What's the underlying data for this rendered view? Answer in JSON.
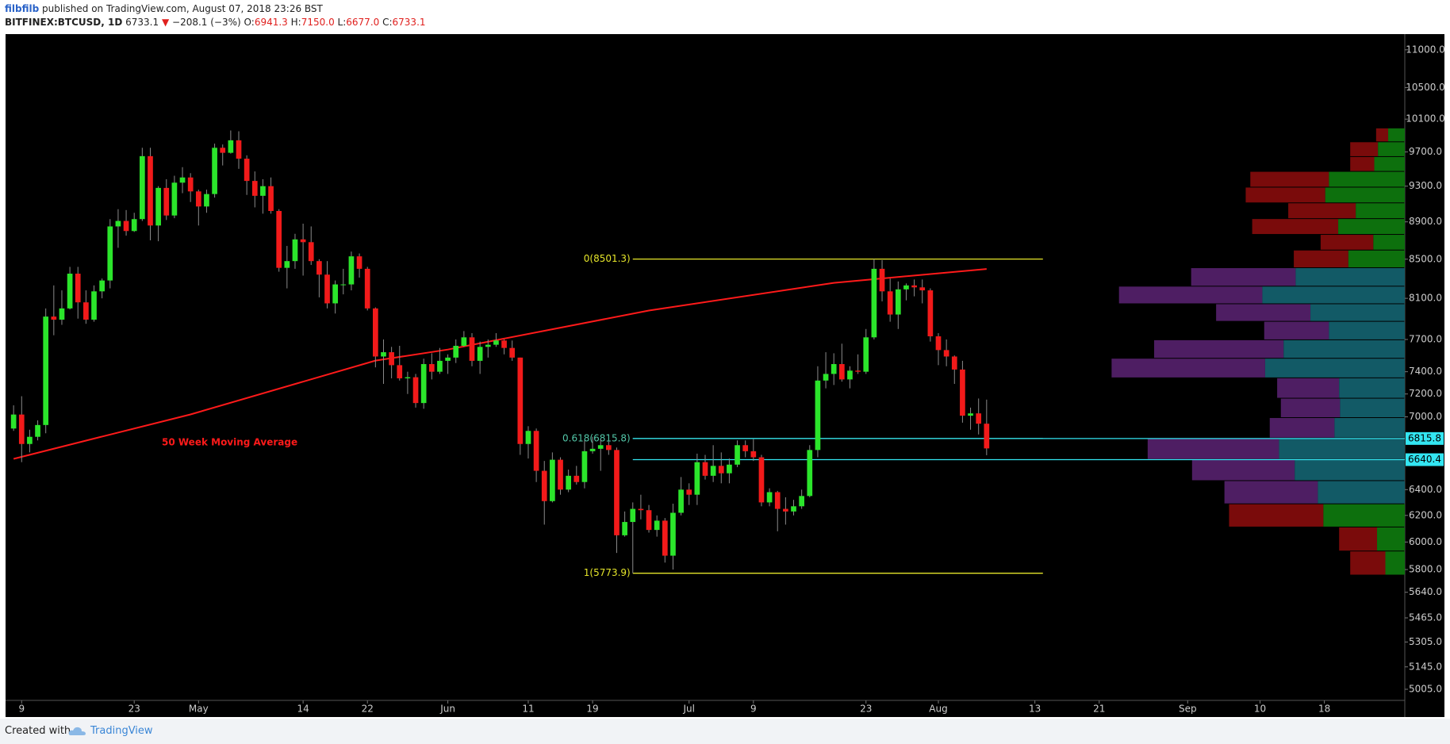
{
  "header": {
    "author": "filbfilb",
    "published": "published on TradingView.com, August 07, 2018 23:26 BST",
    "symbol": "BITFINEX:BTCUSD, 1D",
    "last": "6733.1",
    "arrow": "▼",
    "change": "−208.1 (−3%)",
    "open_label": "O:",
    "open": "6941.3",
    "high_label": "H:",
    "high": "7150.0",
    "low_label": "L:",
    "low": "6677.0",
    "close_label": "C:",
    "close": "6733.1"
  },
  "footer": {
    "created": "Created with",
    "brand": "TradingView"
  },
  "chart_data": {
    "type": "candlestick",
    "log": true,
    "up_color": "#2be52b",
    "down_color": "#f21a1a",
    "xlim": [
      "2018-04-07",
      "2018-09-28"
    ],
    "ylim": [
      4937,
      11204
    ],
    "xticks": [
      {
        "value": "2018-04-09",
        "label": "9"
      },
      {
        "value": "2018-04-23",
        "label": "23"
      },
      {
        "value": "2018-05-01",
        "label": "May"
      },
      {
        "value": "2018-05-14",
        "label": "14"
      },
      {
        "value": "2018-05-22",
        "label": "22"
      },
      {
        "value": "2018-06-01",
        "label": "Jun"
      },
      {
        "value": "2018-06-11",
        "label": "11"
      },
      {
        "value": "2018-06-19",
        "label": "19"
      },
      {
        "value": "2018-07-01",
        "label": "Jul"
      },
      {
        "value": "2018-07-09",
        "label": "9"
      },
      {
        "value": "2018-07-23",
        "label": "23"
      },
      {
        "value": "2018-08-01",
        "label": "Aug"
      },
      {
        "value": "2018-08-13",
        "label": "13"
      },
      {
        "value": "2018-08-21",
        "label": "21"
      },
      {
        "value": "2018-09-01",
        "label": "Sep"
      },
      {
        "value": "2018-09-10",
        "label": "10"
      },
      {
        "value": "2018-09-18",
        "label": "18"
      }
    ],
    "yticks": [
      {
        "value": 11000,
        "label": "11000.0"
      },
      {
        "value": 10500,
        "label": "10500.0"
      },
      {
        "value": 10100,
        "label": "10100.0"
      },
      {
        "value": 9700,
        "label": "9700.0"
      },
      {
        "value": 9300,
        "label": "9300.0"
      },
      {
        "value": 8900,
        "label": "8900.0"
      },
      {
        "value": 8500,
        "label": "8500.0"
      },
      {
        "value": 8100,
        "label": "8100.0"
      },
      {
        "value": 7700,
        "label": "7700.0"
      },
      {
        "value": 7400,
        "label": "7400.0"
      },
      {
        "value": 7200,
        "label": "7200.0"
      },
      {
        "value": 7000,
        "label": "7000.0"
      },
      {
        "value": 6400,
        "label": "6400.0"
      },
      {
        "value": 6200,
        "label": "6200.0"
      },
      {
        "value": 6000,
        "label": "6000.0"
      },
      {
        "value": 5800,
        "label": "5800.0"
      },
      {
        "value": 5640,
        "label": "5640.0"
      },
      {
        "value": 5465,
        "label": "5465.0"
      },
      {
        "value": 5305,
        "label": "5305.0"
      },
      {
        "value": 5145,
        "label": "5145.0"
      },
      {
        "value": 5005,
        "label": "5005.0"
      }
    ],
    "ohlc": [
      [
        "2018-04-08",
        6900,
        7100,
        6880,
        7020
      ],
      [
        "2018-04-09",
        7020,
        7180,
        6620,
        6770
      ],
      [
        "2018-04-10",
        6770,
        6890,
        6700,
        6830
      ],
      [
        "2018-04-11",
        6830,
        6970,
        6800,
        6930
      ],
      [
        "2018-04-12",
        6930,
        8000,
        6860,
        7920
      ],
      [
        "2018-04-13",
        7920,
        8230,
        7740,
        7890
      ],
      [
        "2018-04-14",
        7890,
        8180,
        7840,
        8000
      ],
      [
        "2018-04-15",
        8000,
        8420,
        7990,
        8350
      ],
      [
        "2018-04-16",
        8350,
        8420,
        7900,
        8060
      ],
      [
        "2018-04-17",
        8060,
        8180,
        7850,
        7890
      ],
      [
        "2018-04-18",
        7890,
        8230,
        7870,
        8170
      ],
      [
        "2018-04-19",
        8170,
        8300,
        8100,
        8280
      ],
      [
        "2018-04-20",
        8280,
        8930,
        8200,
        8850
      ],
      [
        "2018-04-21",
        8850,
        9040,
        8620,
        8910
      ],
      [
        "2018-04-22",
        8910,
        9030,
        8750,
        8800
      ],
      [
        "2018-04-23",
        8800,
        9000,
        8790,
        8930
      ],
      [
        "2018-04-24",
        8930,
        9750,
        8910,
        9650
      ],
      [
        "2018-04-25",
        9650,
        9750,
        8700,
        8860
      ],
      [
        "2018-04-26",
        8860,
        9300,
        8690,
        9280
      ],
      [
        "2018-04-27",
        9280,
        9380,
        8920,
        8970
      ],
      [
        "2018-04-28",
        8970,
        9420,
        8940,
        9340
      ],
      [
        "2018-04-29",
        9340,
        9520,
        9220,
        9400
      ],
      [
        "2018-04-30",
        9400,
        9450,
        9120,
        9240
      ],
      [
        "2018-05-01",
        9240,
        9260,
        8860,
        9070
      ],
      [
        "2018-05-02",
        9070,
        9260,
        9000,
        9210
      ],
      [
        "2018-05-03",
        9210,
        9800,
        9170,
        9750
      ],
      [
        "2018-05-04",
        9750,
        9790,
        9540,
        9690
      ],
      [
        "2018-05-05",
        9690,
        9960,
        9680,
        9840
      ],
      [
        "2018-05-06",
        9840,
        9950,
        9500,
        9620
      ],
      [
        "2018-05-07",
        9620,
        9660,
        9200,
        9360
      ],
      [
        "2018-05-08",
        9360,
        9470,
        9060,
        9190
      ],
      [
        "2018-05-09",
        9190,
        9380,
        8990,
        9300
      ],
      [
        "2018-05-10",
        9300,
        9400,
        8990,
        9020
      ],
      [
        "2018-05-11",
        9020,
        9040,
        8370,
        8410
      ],
      [
        "2018-05-12",
        8410,
        8640,
        8200,
        8480
      ],
      [
        "2018-05-13",
        8480,
        8770,
        8400,
        8710
      ],
      [
        "2018-05-14",
        8710,
        8880,
        8330,
        8680
      ],
      [
        "2018-05-15",
        8680,
        8850,
        8440,
        8480
      ],
      [
        "2018-05-16",
        8480,
        8500,
        8110,
        8340
      ],
      [
        "2018-05-17",
        8340,
        8480,
        8000,
        8050
      ],
      [
        "2018-05-18",
        8050,
        8280,
        7950,
        8240
      ],
      [
        "2018-05-19",
        8240,
        8400,
        8140,
        8240
      ],
      [
        "2018-05-20",
        8240,
        8580,
        8180,
        8530
      ],
      [
        "2018-05-21",
        8530,
        8560,
        8310,
        8400
      ],
      [
        "2018-05-22",
        8400,
        8420,
        7980,
        8000
      ],
      [
        "2018-05-23",
        8000,
        8010,
        7440,
        7540
      ],
      [
        "2018-05-24",
        7540,
        7700,
        7290,
        7580
      ],
      [
        "2018-05-25",
        7580,
        7630,
        7340,
        7460
      ],
      [
        "2018-05-26",
        7460,
        7640,
        7320,
        7340
      ],
      [
        "2018-05-27",
        7340,
        7400,
        7200,
        7350
      ],
      [
        "2018-05-28",
        7350,
        7380,
        7080,
        7120
      ],
      [
        "2018-05-29",
        7120,
        7520,
        7070,
        7470
      ],
      [
        "2018-05-30",
        7470,
        7570,
        7330,
        7400
      ],
      [
        "2018-05-31",
        7400,
        7620,
        7380,
        7500
      ],
      [
        "2018-06-01",
        7500,
        7560,
        7380,
        7530
      ],
      [
        "2018-06-02",
        7530,
        7700,
        7480,
        7640
      ],
      [
        "2018-06-03",
        7640,
        7780,
        7630,
        7720
      ],
      [
        "2018-06-04",
        7720,
        7760,
        7450,
        7500
      ],
      [
        "2018-06-05",
        7500,
        7680,
        7380,
        7630
      ],
      [
        "2018-06-06",
        7630,
        7700,
        7530,
        7650
      ],
      [
        "2018-06-07",
        7650,
        7760,
        7630,
        7690
      ],
      [
        "2018-06-08",
        7690,
        7700,
        7560,
        7620
      ],
      [
        "2018-06-09",
        7620,
        7690,
        7500,
        7530
      ],
      [
        "2018-06-10",
        7530,
        7530,
        6680,
        6770
      ],
      [
        "2018-06-11",
        6770,
        6920,
        6650,
        6880
      ],
      [
        "2018-06-12",
        6880,
        6900,
        6460,
        6550
      ],
      [
        "2018-06-13",
        6550,
        6630,
        6130,
        6310
      ],
      [
        "2018-06-14",
        6310,
        6700,
        6300,
        6640
      ],
      [
        "2018-06-15",
        6640,
        6660,
        6360,
        6400
      ],
      [
        "2018-06-16",
        6400,
        6560,
        6380,
        6510
      ],
      [
        "2018-06-17",
        6510,
        6590,
        6440,
        6460
      ],
      [
        "2018-06-18",
        6460,
        6800,
        6410,
        6710
      ],
      [
        "2018-06-19",
        6710,
        6830,
        6690,
        6730
      ],
      [
        "2018-06-20",
        6730,
        6810,
        6550,
        6760
      ],
      [
        "2018-06-21",
        6760,
        6790,
        6680,
        6720
      ],
      [
        "2018-06-22",
        6720,
        6740,
        5920,
        6050
      ],
      [
        "2018-06-23",
        6050,
        6230,
        6040,
        6150
      ],
      [
        "2018-06-24",
        6150,
        6300,
        5773.9,
        6250
      ],
      [
        "2018-06-25",
        6250,
        6360,
        6170,
        6240
      ],
      [
        "2018-06-26",
        6240,
        6280,
        6070,
        6090
      ],
      [
        "2018-06-27",
        6090,
        6200,
        6040,
        6160
      ],
      [
        "2018-06-28",
        6160,
        6180,
        5850,
        5900
      ],
      [
        "2018-06-29",
        5900,
        6290,
        5800,
        6220
      ],
      [
        "2018-06-30",
        6220,
        6500,
        6200,
        6400
      ],
      [
        "2018-07-01",
        6400,
        6450,
        6280,
        6360
      ],
      [
        "2018-07-02",
        6360,
        6690,
        6280,
        6620
      ],
      [
        "2018-07-03",
        6620,
        6680,
        6480,
        6510
      ],
      [
        "2018-07-04",
        6510,
        6760,
        6460,
        6590
      ],
      [
        "2018-07-05",
        6590,
        6700,
        6450,
        6530
      ],
      [
        "2018-07-06",
        6530,
        6650,
        6450,
        6600
      ],
      [
        "2018-07-07",
        6600,
        6800,
        6580,
        6760
      ],
      [
        "2018-07-08",
        6760,
        6800,
        6660,
        6710
      ],
      [
        "2018-07-09",
        6710,
        6810,
        6630,
        6660
      ],
      [
        "2018-07-10",
        6660,
        6680,
        6270,
        6300
      ],
      [
        "2018-07-11",
        6300,
        6410,
        6270,
        6380
      ],
      [
        "2018-07-12",
        6380,
        6390,
        6080,
        6250
      ],
      [
        "2018-07-13",
        6250,
        6340,
        6130,
        6230
      ],
      [
        "2018-07-14",
        6230,
        6320,
        6200,
        6270
      ],
      [
        "2018-07-15",
        6270,
        6400,
        6250,
        6350
      ],
      [
        "2018-07-16",
        6350,
        6760,
        6340,
        6720
      ],
      [
        "2018-07-17",
        6720,
        7450,
        6660,
        7320
      ],
      [
        "2018-07-18",
        7320,
        7580,
        7250,
        7380
      ],
      [
        "2018-07-19",
        7380,
        7570,
        7280,
        7470
      ],
      [
        "2018-07-20",
        7470,
        7660,
        7310,
        7330
      ],
      [
        "2018-07-21",
        7330,
        7450,
        7250,
        7410
      ],
      [
        "2018-07-22",
        7410,
        7560,
        7380,
        7400
      ],
      [
        "2018-07-23",
        7400,
        7800,
        7380,
        7720
      ],
      [
        "2018-07-24",
        7720,
        8501.3,
        7700,
        8400
      ],
      [
        "2018-07-25",
        8400,
        8490,
        8070,
        8170
      ],
      [
        "2018-07-26",
        8170,
        8300,
        7870,
        7940
      ],
      [
        "2018-07-27",
        7940,
        8270,
        7800,
        8190
      ],
      [
        "2018-07-28",
        8190,
        8250,
        8080,
        8230
      ],
      [
        "2018-07-29",
        8230,
        8290,
        8120,
        8210
      ],
      [
        "2018-07-30",
        8210,
        8290,
        8050,
        8180
      ],
      [
        "2018-07-31",
        8180,
        8200,
        7680,
        7730
      ],
      [
        "2018-08-01",
        7730,
        7760,
        7460,
        7600
      ],
      [
        "2018-08-02",
        7600,
        7700,
        7450,
        7540
      ],
      [
        "2018-08-03",
        7540,
        7550,
        7290,
        7420
      ],
      [
        "2018-08-04",
        7420,
        7500,
        6950,
        7010
      ],
      [
        "2018-08-05",
        7010,
        7080,
        6890,
        7030
      ],
      [
        "2018-08-06",
        7030,
        7160,
        6850,
        6941.3
      ],
      [
        "2018-08-07",
        6941.3,
        7150.0,
        6677.0,
        6733.1
      ]
    ],
    "ma": {
      "name": "50 Week Moving Average",
      "color": "#ff1a1a",
      "x": [
        "2018-04-08",
        "2018-04-19",
        "2018-04-30",
        "2018-05-23",
        "2018-06-01",
        "2018-06-26",
        "2018-07-19",
        "2018-08-07"
      ],
      "values": [
        6647,
        6832,
        7021,
        7502,
        7605,
        7979,
        8256,
        8398
      ]
    },
    "fib": {
      "start": "2018-06-24",
      "end": "2018-08-14",
      "levels": [
        {
          "value": 8501.3,
          "label": "0(8501.3)",
          "color": "#e5e52a"
        },
        {
          "value": 6815.8,
          "label": "0.618(6815.8)",
          "color": "#52c7a8"
        },
        {
          "value": 5773.9,
          "label": "1(5773.9)",
          "color": "#e5e52a"
        }
      ]
    },
    "hlines": {
      "start": "2018-06-24",
      "color": "#33e6f2",
      "lines": [
        {
          "value": 6815.8,
          "label": "6815.8"
        },
        {
          "value": 6640.4,
          "label": "6640.4"
        }
      ]
    },
    "volume_profile": {
      "bins": [
        5758,
        5931,
        6109,
        6286,
        6468,
        6640,
        6817,
        6990,
        7159,
        7341,
        7520,
        7693,
        7870,
        8042,
        8218,
        8407,
        8592,
        8759,
        8931,
        9106,
        9284,
        9466,
        9640,
        9817,
        9986
      ],
      "down": [
        38,
        41,
        102,
        101,
        111,
        142,
        70,
        64,
        67,
        166,
        140,
        70,
        102,
        155,
        113,
        59,
        57,
        93,
        73,
        86,
        85,
        26,
        30,
        13
      ],
      "up": [
        21,
        30,
        88,
        94,
        119,
        136,
        76,
        70,
        71,
        151,
        131,
        82,
        102,
        154,
        118,
        61,
        34,
        72,
        53,
        86,
        82,
        33,
        29,
        18
      ],
      "value_area": [
        6286,
        8407
      ],
      "colors": {
        "down": "#7a0b0b",
        "up": "#0d700d",
        "area_down": "#4e1e63",
        "area_up": "#125a66"
      }
    }
  }
}
